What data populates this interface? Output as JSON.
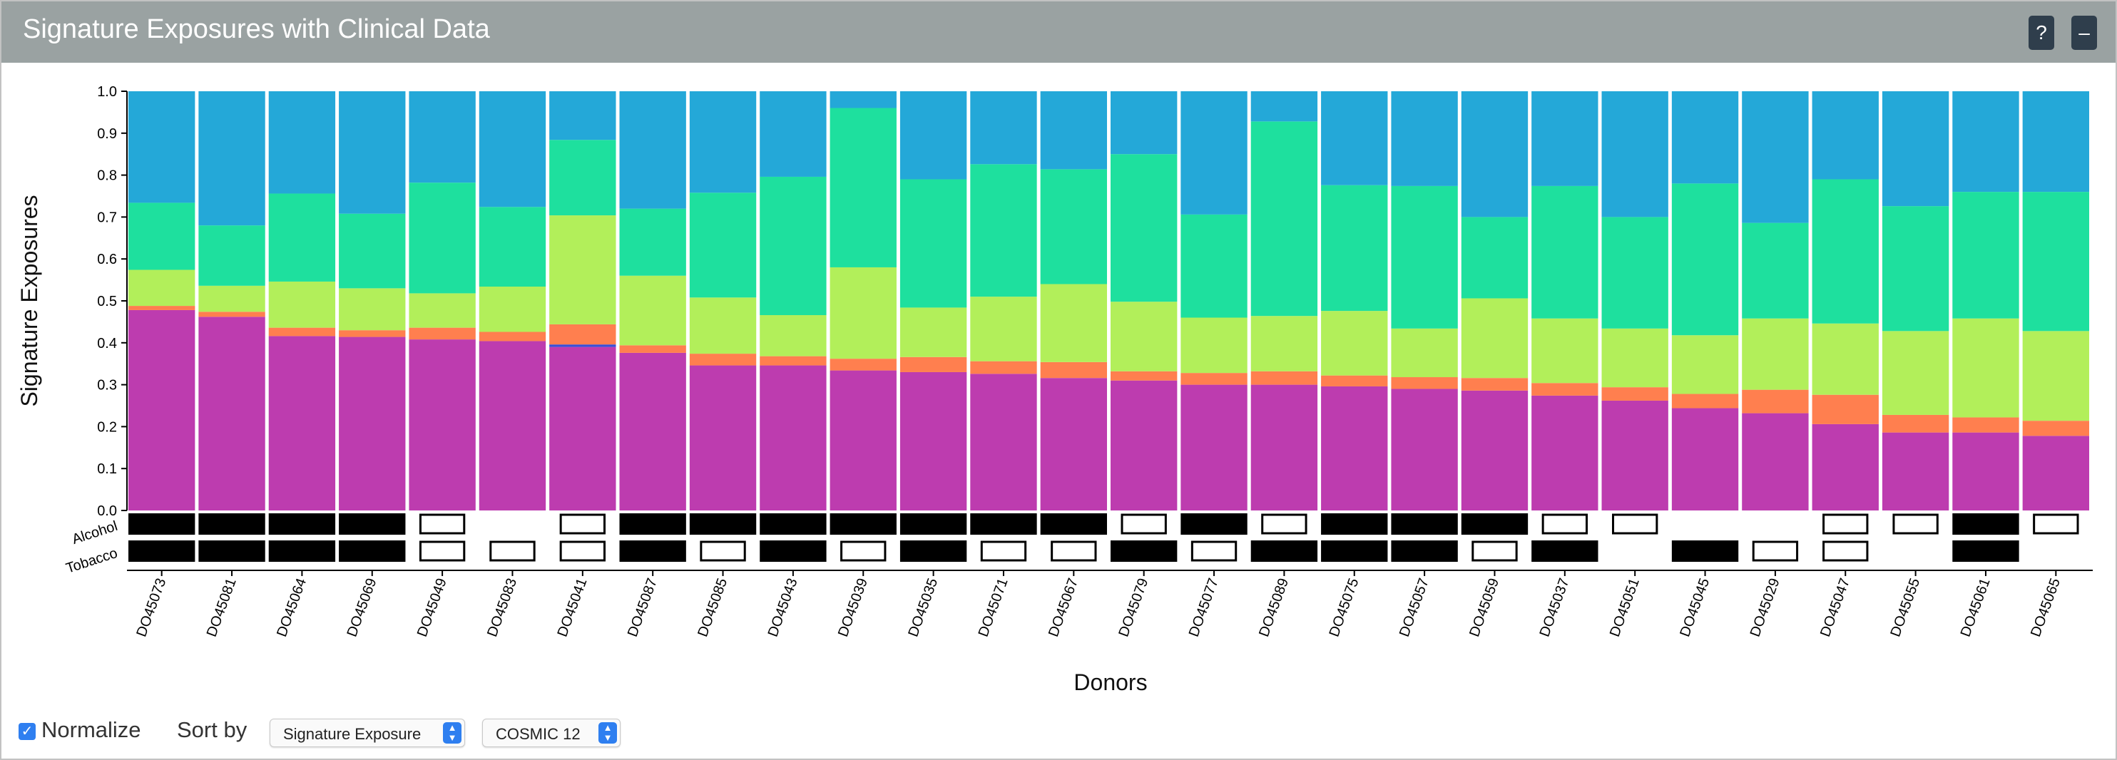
{
  "window": {
    "title": "Signature Exposures with Clinical Data",
    "help_label": "?",
    "minimize_label": "–"
  },
  "controls": {
    "normalize_label": "Normalize",
    "normalize_checked": true,
    "sort_by_label": "Sort by",
    "sort_value": "Signature Exposure",
    "signature_value": "COSMIC 12"
  },
  "chart_data": {
    "type": "bar",
    "stacked": true,
    "ylabel": "Signature Exposures",
    "xlabel": "Donors",
    "ylim": [
      0,
      1
    ],
    "yticks": [
      "0.0",
      "0.1",
      "0.2",
      "0.3",
      "0.4",
      "0.5",
      "0.6",
      "0.7",
      "0.8",
      "0.9",
      "1.0"
    ],
    "categories": [
      "DO45073",
      "DO45081",
      "DO45064",
      "DO45069",
      "DO45049",
      "DO45083",
      "DO45041",
      "DO45087",
      "DO45085",
      "DO45043",
      "DO45039",
      "DO45035",
      "DO45071",
      "DO45067",
      "DO45079",
      "DO45077",
      "DO45089",
      "DO45075",
      "DO45057",
      "DO45059",
      "DO45037",
      "DO45051",
      "DO45045",
      "DO45029",
      "DO45047",
      "DO45055",
      "DO45061",
      "DO45065"
    ],
    "series": [
      {
        "color": "#bd3caf",
        "values": [
          0.478,
          0.462,
          0.416,
          0.414,
          0.408,
          0.404,
          0.39,
          0.376,
          0.346,
          0.346,
          0.334,
          0.33,
          0.326,
          0.316,
          0.31,
          0.3,
          0.3,
          0.296,
          0.29,
          0.286,
          0.274,
          0.262,
          0.244,
          0.232,
          0.206,
          0.186,
          0.186,
          0.178
        ]
      },
      {
        "color": "#3a4fd6",
        "values": [
          0,
          0,
          0,
          0,
          0,
          0,
          0.006,
          0,
          0,
          0,
          0,
          0,
          0,
          0,
          0,
          0,
          0,
          0,
          0,
          0,
          0,
          0,
          0,
          0,
          0,
          0,
          0,
          0
        ]
      },
      {
        "color": "#ff7f4f",
        "values": [
          0.01,
          0.012,
          0.02,
          0.016,
          0.028,
          0.022,
          0.048,
          0.018,
          0.028,
          0.022,
          0.028,
          0.036,
          0.03,
          0.038,
          0.022,
          0.028,
          0.032,
          0.026,
          0.028,
          0.03,
          0.03,
          0.032,
          0.034,
          0.056,
          0.07,
          0.042,
          0.036,
          0.036
        ]
      },
      {
        "color": "#b2ef5a",
        "values": [
          0.086,
          0.062,
          0.11,
          0.1,
          0.082,
          0.108,
          0.26,
          0.166,
          0.134,
          0.098,
          0.218,
          0.118,
          0.154,
          0.186,
          0.166,
          0.132,
          0.132,
          0.154,
          0.116,
          0.19,
          0.154,
          0.14,
          0.14,
          0.17,
          0.17,
          0.2,
          0.236,
          0.214
        ]
      },
      {
        "color": "#1ee09e",
        "values": [
          0.16,
          0.144,
          0.21,
          0.178,
          0.264,
          0.19,
          0.18,
          0.16,
          0.25,
          0.33,
          0.38,
          0.306,
          0.316,
          0.274,
          0.352,
          0.246,
          0.464,
          0.3,
          0.34,
          0.194,
          0.316,
          0.266,
          0.362,
          0.228,
          0.344,
          0.298,
          0.302,
          0.332
        ]
      },
      {
        "color": "#24a8d8",
        "values": [
          0.266,
          0.32,
          0.244,
          0.292,
          0.218,
          0.276,
          0.116,
          0.28,
          0.242,
          0.204,
          0.04,
          0.21,
          0.174,
          0.186,
          0.15,
          0.294,
          0.072,
          0.224,
          0.226,
          0.3,
          0.226,
          0.3,
          0.22,
          0.314,
          0.21,
          0.274,
          0.24,
          0.24
        ]
      }
    ],
    "clinical_tracks": [
      {
        "label": "Alcohol",
        "values": [
          "yes",
          "yes",
          "yes",
          "yes",
          "no",
          "none",
          "no",
          "yes",
          "yes",
          "yes",
          "yes",
          "yes",
          "yes",
          "yes",
          "no",
          "yes",
          "no",
          "yes",
          "yes",
          "yes",
          "no",
          "no",
          "none",
          "none",
          "no",
          "no",
          "yes",
          "no"
        ]
      },
      {
        "label": "Tobacco",
        "values": [
          "yes",
          "yes",
          "yes",
          "yes",
          "no",
          "no",
          "no",
          "yes",
          "no",
          "yes",
          "no",
          "yes",
          "no",
          "no",
          "yes",
          "no",
          "yes",
          "yes",
          "yes",
          "no",
          "yes",
          "none",
          "yes",
          "no",
          "no",
          "none",
          "yes",
          "none"
        ]
      }
    ],
    "grid": false,
    "legend": "none"
  }
}
